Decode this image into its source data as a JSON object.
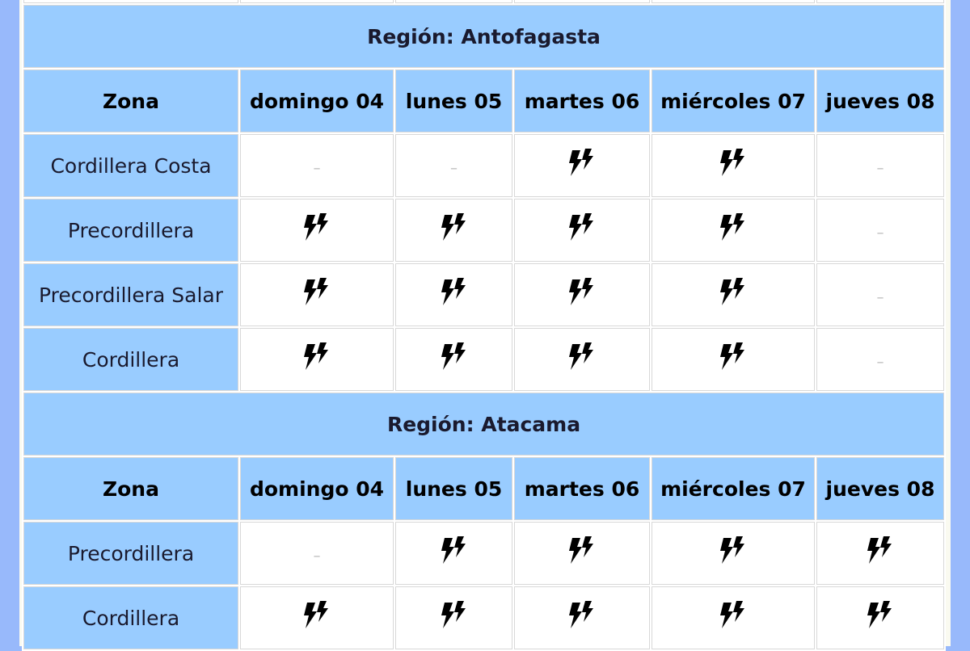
{
  "columns_label": "Zona",
  "days": [
    "domingo 04",
    "lunes 05",
    "martes 06",
    "miércoles 07",
    "jueves 08"
  ],
  "no_event": "–",
  "event_icon": "double-lightning-icon",
  "regions": [
    {
      "title": "Región: Antofagasta",
      "rows": [
        {
          "zona": "Cordillera Costa",
          "values": [
            false,
            false,
            true,
            true,
            false
          ]
        },
        {
          "zona": "Precordillera",
          "values": [
            true,
            true,
            true,
            true,
            false
          ]
        },
        {
          "zona": "Precordillera Salar",
          "values": [
            true,
            true,
            true,
            true,
            false
          ]
        },
        {
          "zona": "Cordillera",
          "values": [
            true,
            true,
            true,
            true,
            false
          ]
        }
      ]
    },
    {
      "title": "Región: Atacama",
      "rows": [
        {
          "zona": "Precordillera",
          "values": [
            false,
            true,
            true,
            true,
            true
          ]
        },
        {
          "zona": "Cordillera",
          "values": [
            true,
            true,
            true,
            true,
            true
          ]
        }
      ]
    }
  ],
  "colors": {
    "header_bg": "#99ccff",
    "page_bg": "#98b9fb"
  }
}
